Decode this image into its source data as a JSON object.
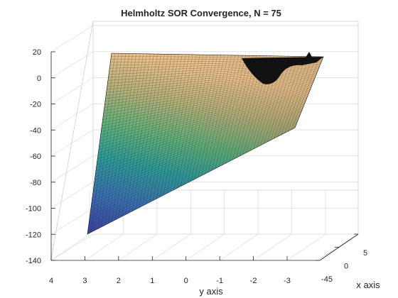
{
  "chart_data": {
    "type": "surface",
    "title": "Helmholtz SOR Convergence, N = 75",
    "xlabel": "x axis",
    "ylabel": "y axis",
    "zlabel": "",
    "x_ticks": [
      "-45",
      "0",
      "5"
    ],
    "y_ticks": [
      "4",
      "3",
      "2",
      "1",
      "0",
      "-1",
      "-2",
      "-3"
    ],
    "z_ticks": [
      "20",
      "0",
      "-20",
      "-40",
      "-60",
      "-80",
      "-100",
      "-120",
      "-140"
    ],
    "z_range": [
      -140,
      20
    ],
    "grid": true,
    "colormap": "parula",
    "surface_z_min": -122,
    "surface_z_max": 18,
    "mesh_lines": true
  }
}
